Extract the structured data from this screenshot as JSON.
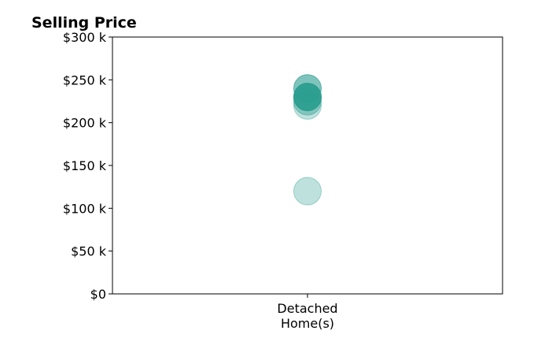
{
  "chart_data": {
    "type": "scatter",
    "title": "Selling Price",
    "xlabel": "",
    "ylabel": "",
    "categories": [
      [
        "Detached",
        "Home(s)"
      ]
    ],
    "y_ticks": [
      0,
      50000,
      100000,
      150000,
      200000,
      250000,
      300000
    ],
    "y_tick_labels": [
      "$0",
      "$50 k",
      "$100 k",
      "$150 k",
      "$200 k",
      "$250 k",
      "$300 k"
    ],
    "ylim": [
      0,
      300000
    ],
    "grid": false,
    "marker_color": "#2a9d8f",
    "series": [
      {
        "category_index": 0,
        "values": [
          120000,
          220000,
          225000,
          230000,
          240000,
          230000
        ],
        "opacity": [
          0.3,
          0.3,
          0.4,
          0.5,
          0.6,
          0.85
        ]
      }
    ]
  }
}
